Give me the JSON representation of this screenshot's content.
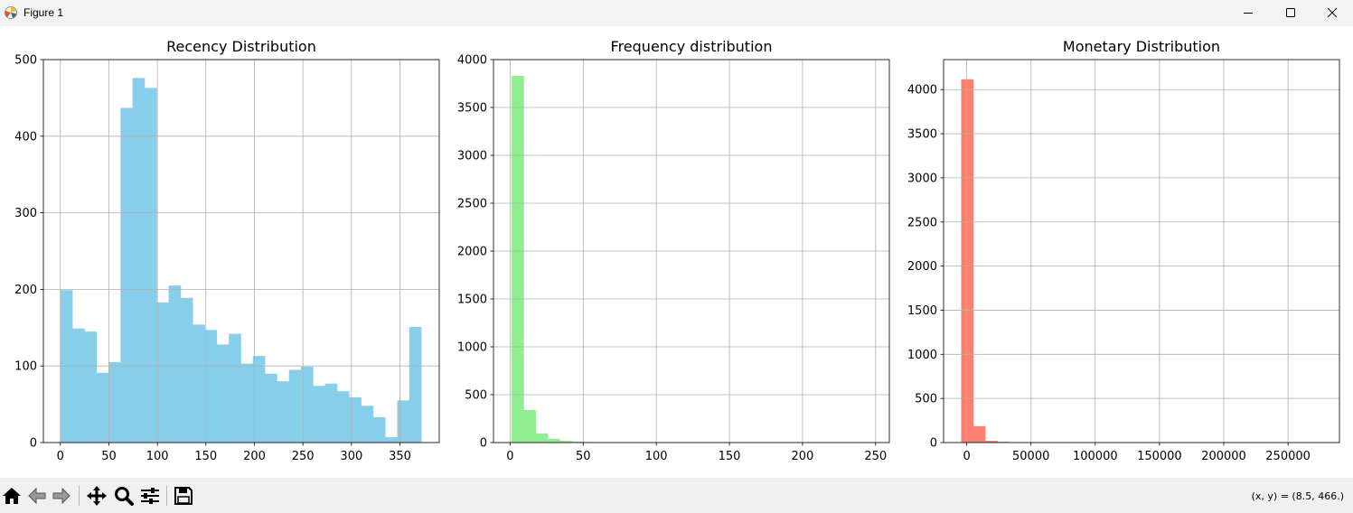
{
  "window": {
    "title": "Figure 1"
  },
  "toolbar": {
    "buttons": [
      "home-icon",
      "back-icon",
      "forward-icon",
      "pan-icon",
      "zoom-icon",
      "configure-subplots-icon",
      "save-icon"
    ],
    "coords": "(x, y) = (8.5, 466.)"
  },
  "chart_data": [
    {
      "type": "bar",
      "title": "Recency Distribution",
      "color": "#87ceeb",
      "grid": true,
      "xlim": [
        -17.5,
        390.5
      ],
      "ylim": [
        0,
        500
      ],
      "xticks": [
        0,
        50,
        100,
        150,
        200,
        250,
        300,
        350
      ],
      "yticks": [
        0,
        100,
        200,
        300,
        400,
        500
      ],
      "bin_start": 0,
      "bin_width": 12.4,
      "values": [
        199,
        149,
        145,
        91,
        105,
        437,
        476,
        463,
        183,
        205,
        189,
        154,
        147,
        128,
        142,
        103,
        113,
        90,
        80,
        95,
        99,
        74,
        77,
        67,
        59,
        48,
        33,
        7,
        55,
        151
      ]
    },
    {
      "type": "bar",
      "title": "Frequency distribution",
      "color": "#90ee90",
      "grid": true,
      "xlim": [
        -11.4,
        259.4
      ],
      "ylim": [
        0,
        4000
      ],
      "xticks": [
        0,
        50,
        100,
        150,
        200,
        250
      ],
      "yticks": [
        0,
        500,
        1000,
        1500,
        2000,
        2500,
        3000,
        3500,
        4000
      ],
      "bin_start": 1,
      "bin_width": 8.23,
      "values": [
        3830,
        340,
        96,
        40,
        18,
        10,
        5,
        3,
        2,
        1,
        1,
        1,
        1,
        0,
        0,
        0,
        0,
        0,
        0,
        0,
        0,
        0,
        0,
        0,
        0,
        0,
        0,
        0,
        0,
        1
      ]
    },
    {
      "type": "bar",
      "title": "Monetary Distribution",
      "color": "#fa8072",
      "grid": true,
      "xlim": [
        -18000,
        290000
      ],
      "ylim": [
        0,
        4340
      ],
      "xticks": [
        0,
        50000,
        100000,
        150000,
        200000,
        250000
      ],
      "yticks": [
        0,
        500,
        1000,
        1500,
        2000,
        2500,
        3000,
        3500,
        4000
      ],
      "bin_start": -4288,
      "bin_width": 9370,
      "values": [
        4117,
        186,
        20,
        8,
        3,
        2,
        1,
        1,
        0,
        0,
        1,
        0,
        0,
        0,
        0,
        0,
        0,
        0,
        0,
        0,
        0,
        0,
        0,
        0,
        0,
        0,
        0,
        0,
        0,
        1
      ]
    }
  ]
}
